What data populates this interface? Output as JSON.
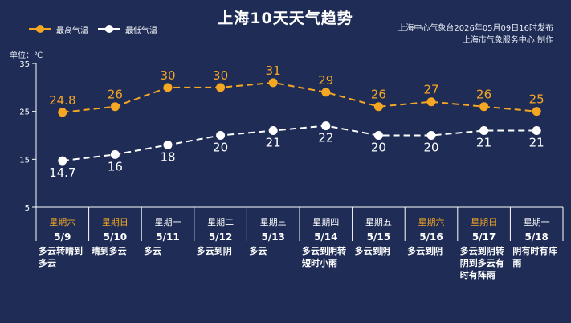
{
  "header": {
    "title": "上海10天天气趋势",
    "publisher_line1": "上海中心气象台2026年05月09日16时发布",
    "publisher_line2": "上海市气象服务中心  制作"
  },
  "legend": {
    "high_label": "最高气温",
    "low_label": "最低气温"
  },
  "unit_label": "单位：℃",
  "colors": {
    "background": "#1e2c56",
    "high": "#f5a623",
    "low": "#ffffff",
    "weekend": "#f5a623"
  },
  "chart_data": {
    "type": "line",
    "categories": [
      "5/9",
      "5/10",
      "5/11",
      "5/12",
      "5/13",
      "5/14",
      "5/15",
      "5/16",
      "5/17",
      "5/18"
    ],
    "series": [
      {
        "name": "最高气温",
        "values": [
          24.8,
          26,
          30,
          30,
          31,
          29,
          26,
          27,
          26,
          25
        ]
      },
      {
        "name": "最低气温",
        "values": [
          14.7,
          16,
          18,
          20,
          21,
          22,
          20,
          20,
          21,
          21
        ]
      }
    ],
    "yticks": [
      "35",
      "25",
      "15",
      "5"
    ],
    "ylim": [
      5,
      35
    ],
    "grid": false
  },
  "days": [
    {
      "weekday": "星期六",
      "date": "5/9",
      "weather": "多云转晴到多云",
      "weekend": true
    },
    {
      "weekday": "星期日",
      "date": "5/10",
      "weather": "晴到多云",
      "weekend": true
    },
    {
      "weekday": "星期一",
      "date": "5/11",
      "weather": "多云",
      "weekend": false
    },
    {
      "weekday": "星期二",
      "date": "5/12",
      "weather": "多云到阴",
      "weekend": false
    },
    {
      "weekday": "星期三",
      "date": "5/13",
      "weather": "多云",
      "weekend": false
    },
    {
      "weekday": "星期四",
      "date": "5/14",
      "weather": "多云到阴转短时小雨",
      "weekend": false
    },
    {
      "weekday": "星期五",
      "date": "5/15",
      "weather": "多云到阴",
      "weekend": false
    },
    {
      "weekday": "星期六",
      "date": "5/16",
      "weather": "多云到阴",
      "weekend": true
    },
    {
      "weekday": "星期日",
      "date": "5/17",
      "weather": "多云到阴转阴到多云有时有阵雨",
      "weekend": true
    },
    {
      "weekday": "星期一",
      "date": "5/18",
      "weather": "阴有时有阵雨",
      "weekend": false
    }
  ]
}
